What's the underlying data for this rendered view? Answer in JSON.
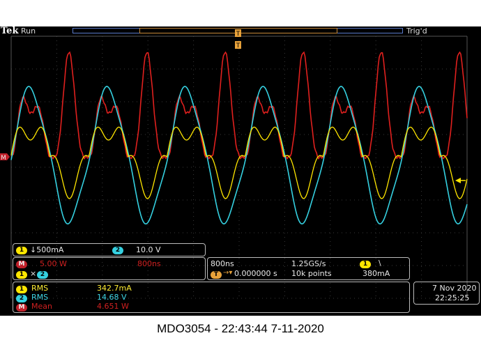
{
  "header": {
    "brand": "Tek",
    "state": "Run",
    "trigger_status": "Trig'd",
    "trigger_marker": "T"
  },
  "channels": {
    "ch1": {
      "badge": "1",
      "scale": "↓500mA",
      "color": "#ffe600"
    },
    "ch2": {
      "badge": "2",
      "scale": "10.0 V",
      "color": "#35d0e0"
    },
    "math": {
      "badge": "M",
      "scale": "5.00 W",
      "timebase": "800ns",
      "color": "#d02020"
    },
    "ground_marker_label": "M"
  },
  "reference_row": {
    "badge1": "1",
    "badge2": "2"
  },
  "acquisition": {
    "horizontal": "800ns",
    "sample_rate": "1.25GS/s",
    "trigger_badge": "1",
    "trigger_slope": "\\",
    "trigger_position": "0.000000 s",
    "record_length": "10k points",
    "trigger_level": "380mA"
  },
  "measurements": [
    {
      "badge": "1",
      "name": "RMS",
      "value": "342.7mA",
      "cls": "yel"
    },
    {
      "badge": "2",
      "name": "RMS",
      "value": "14.68 V",
      "cls": "cy"
    },
    {
      "badge": "M",
      "name": "Mean",
      "value": "4.651 W",
      "cls": "rd"
    }
  ],
  "clock": {
    "date": "7 Nov 2020",
    "time": "22:25:25"
  },
  "caption": "MDO3054 - 22:43:44   7-11-2020",
  "colors": {
    "ch1": "#ffe600",
    "ch2": "#35d0e0",
    "math": "#e0201e",
    "grid": "#3a3a3a"
  }
}
